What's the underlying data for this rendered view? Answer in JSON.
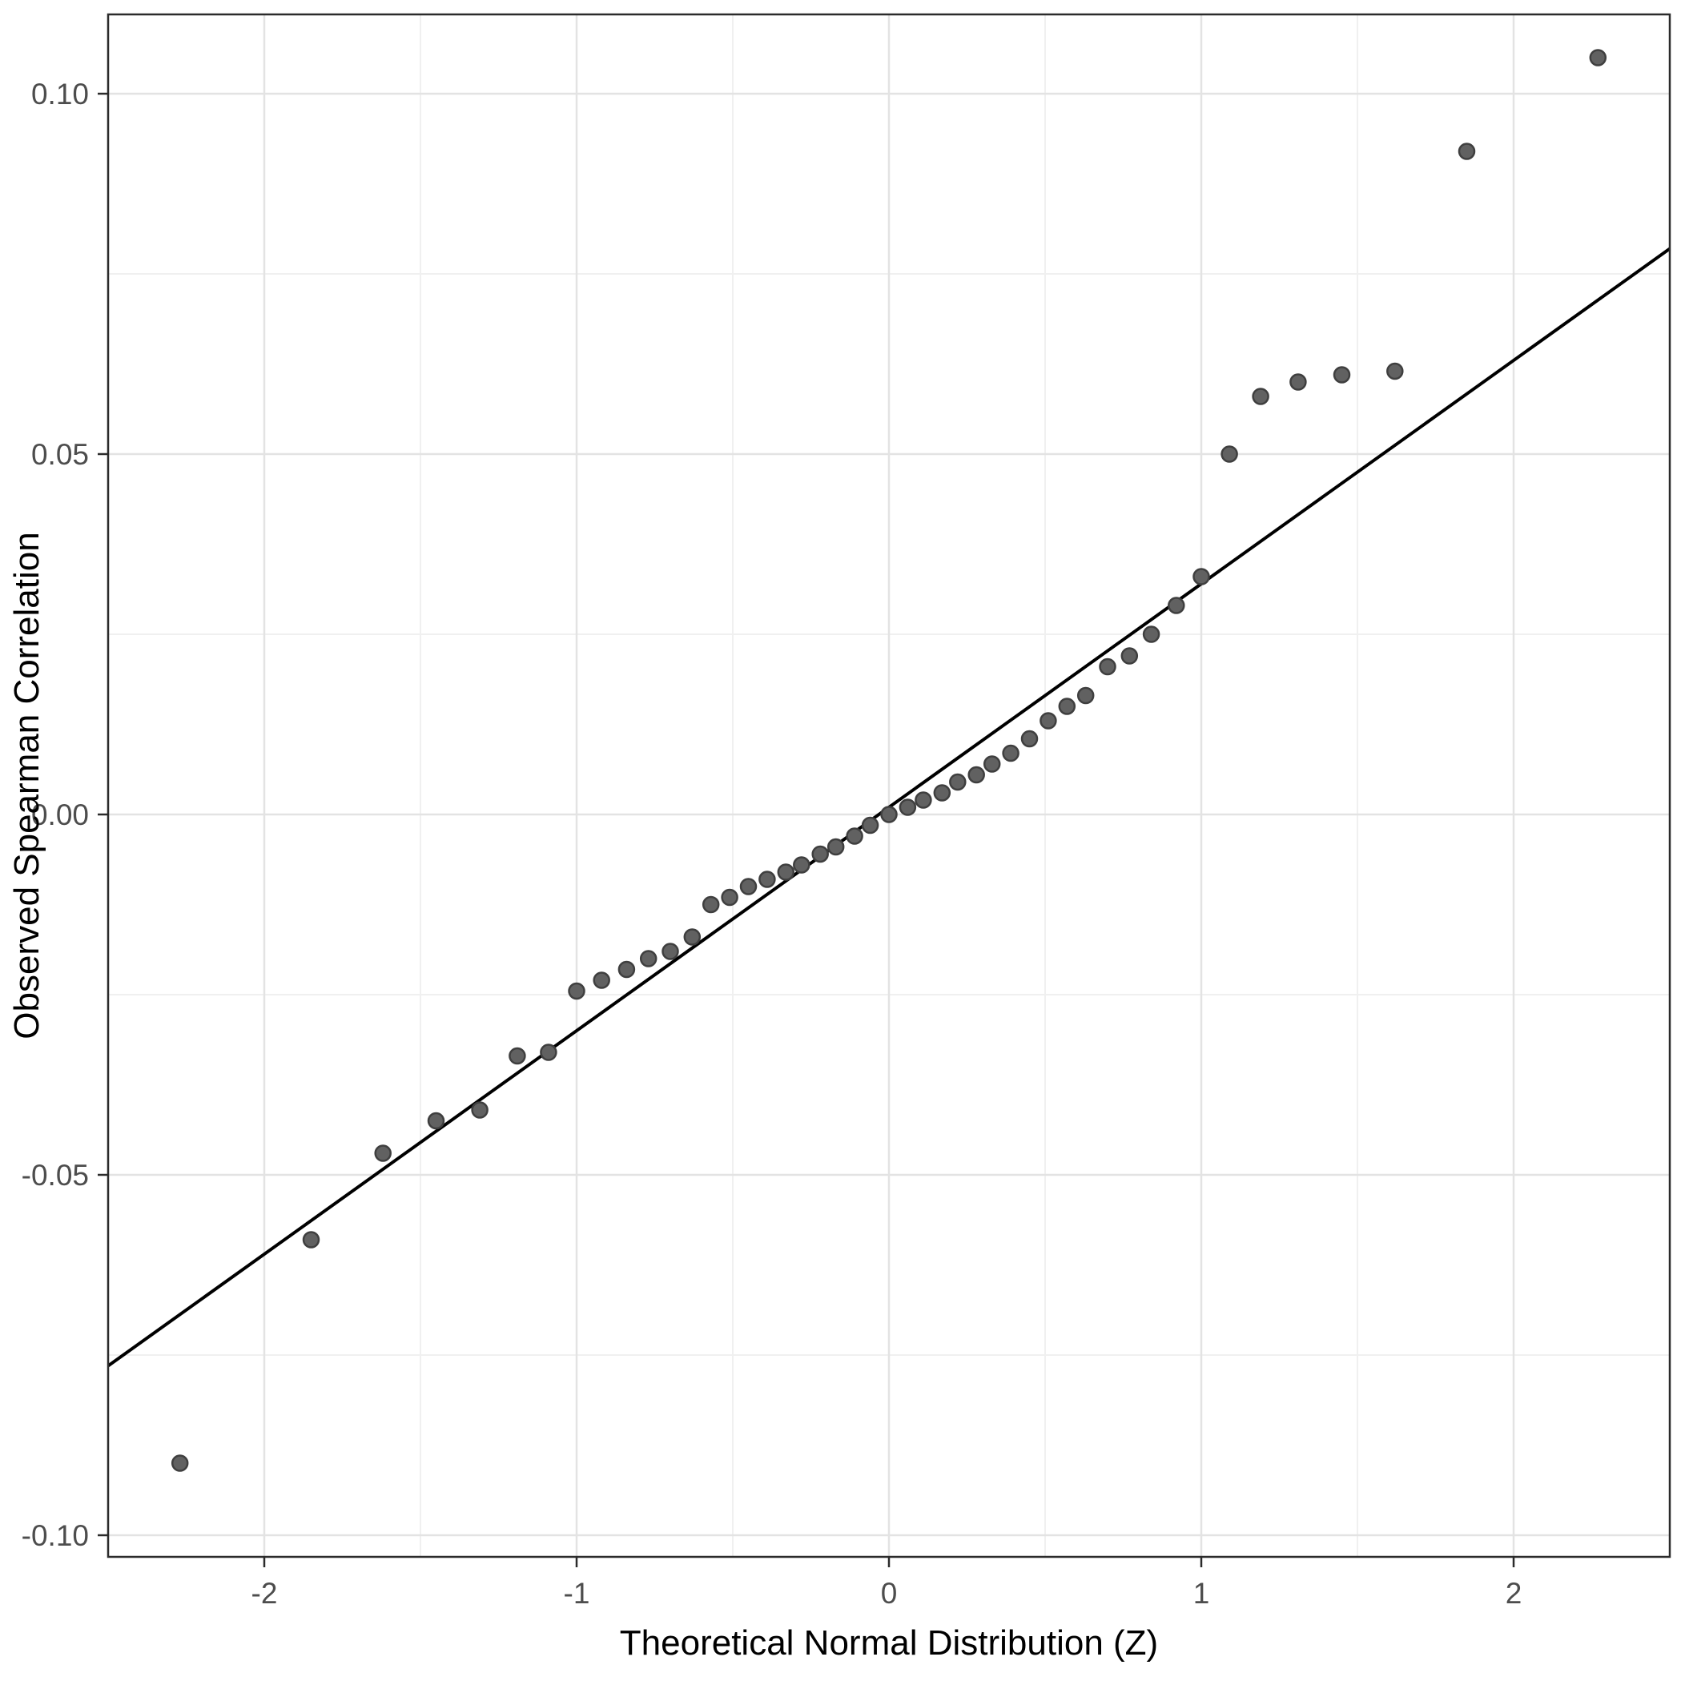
{
  "chart_data": {
    "type": "scatter",
    "title": "",
    "xlabel": "Theoretical Normal Distribution (Z)",
    "ylabel": "Observed Spearman Correlation",
    "xlim": [
      -2.5,
      2.5
    ],
    "ylim": [
      -0.103,
      0.111
    ],
    "x_tick_values": [
      -2,
      -1,
      0,
      1,
      2
    ],
    "x_tick_labels": [
      "-2",
      "-1",
      "0",
      "1",
      "2"
    ],
    "y_tick_values": [
      -0.1,
      -0.05,
      0.0,
      0.05,
      0.1
    ],
    "y_tick_labels": [
      "-0.10",
      "-0.05",
      "0.00",
      "0.05",
      "0.10"
    ],
    "x_minor_ticks": [
      -1.5,
      -0.5,
      0.5,
      1.5
    ],
    "y_minor_ticks": [
      -0.075,
      -0.025,
      0.025,
      0.075
    ],
    "grid": "on",
    "legend": "none",
    "panel_background": "#ffffff",
    "panel_border_color": "#2b2b2b",
    "major_grid_color": "#e3e3e3",
    "minor_grid_color": "#f0f0f0",
    "point_fill": "#616161",
    "point_stroke": "#3f3f3f",
    "reference_line": {
      "slope": 0.031,
      "intercept": 0.001,
      "color": "#000000"
    },
    "points": [
      [
        -2.27,
        -0.09
      ],
      [
        -1.85,
        -0.059
      ],
      [
        -1.62,
        -0.047
      ],
      [
        -1.45,
        -0.0425
      ],
      [
        -1.31,
        -0.041
      ],
      [
        -1.19,
        -0.0335
      ],
      [
        -1.09,
        -0.033
      ],
      [
        -1.0,
        -0.0245
      ],
      [
        -0.92,
        -0.023
      ],
      [
        -0.84,
        -0.0215
      ],
      [
        -0.77,
        -0.02
      ],
      [
        -0.7,
        -0.019
      ],
      [
        -0.63,
        -0.017
      ],
      [
        -0.57,
        -0.0125
      ],
      [
        -0.51,
        -0.0115
      ],
      [
        -0.45,
        -0.01
      ],
      [
        -0.39,
        -0.009
      ],
      [
        -0.33,
        -0.008
      ],
      [
        -0.28,
        -0.007
      ],
      [
        -0.22,
        -0.0055
      ],
      [
        -0.17,
        -0.0045
      ],
      [
        -0.11,
        -0.003
      ],
      [
        -0.06,
        -0.0015
      ],
      [
        0.0,
        0.0
      ],
      [
        0.06,
        0.001
      ],
      [
        0.11,
        0.002
      ],
      [
        0.17,
        0.003
      ],
      [
        0.22,
        0.0045
      ],
      [
        0.28,
        0.0055
      ],
      [
        0.33,
        0.007
      ],
      [
        0.39,
        0.0085
      ],
      [
        0.45,
        0.0105
      ],
      [
        0.51,
        0.013
      ],
      [
        0.57,
        0.015
      ],
      [
        0.63,
        0.0165
      ],
      [
        0.7,
        0.0205
      ],
      [
        0.77,
        0.022
      ],
      [
        0.84,
        0.025
      ],
      [
        0.92,
        0.029
      ],
      [
        1.0,
        0.033
      ],
      [
        1.09,
        0.05
      ],
      [
        1.19,
        0.058
      ],
      [
        1.31,
        0.06
      ],
      [
        1.45,
        0.061
      ],
      [
        1.62,
        0.0615
      ],
      [
        1.85,
        0.092
      ],
      [
        2.27,
        0.105
      ]
    ]
  }
}
